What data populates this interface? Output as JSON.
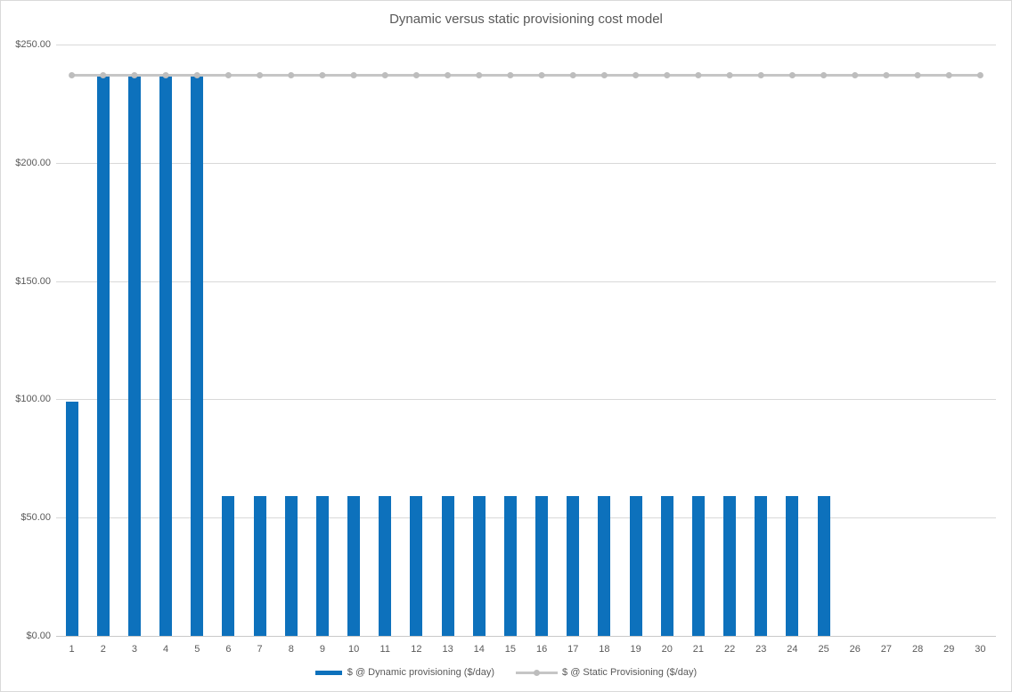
{
  "chart_data": {
    "type": "bar",
    "title": "Dynamic versus static provisioning cost model",
    "categories": [
      1,
      2,
      3,
      4,
      5,
      6,
      7,
      8,
      9,
      10,
      11,
      12,
      13,
      14,
      15,
      16,
      17,
      18,
      19,
      20,
      21,
      22,
      23,
      24,
      25,
      26,
      27,
      28,
      29,
      30
    ],
    "series": [
      {
        "name": "$ @ Dynamic provisioning ($/day)",
        "kind": "bar",
        "color": "#0D71BC",
        "values": [
          99,
          237,
          237,
          237,
          237,
          59,
          59,
          59,
          59,
          59,
          59,
          59,
          59,
          59,
          59,
          59,
          59,
          59,
          59,
          59,
          59,
          59,
          59,
          59,
          59,
          0,
          0,
          0,
          0,
          0
        ]
      },
      {
        "name": "$ @ Static Provisioning ($/day)",
        "kind": "line",
        "color": "#C6C6C6",
        "marker_color": "#BDBDBD",
        "values": [
          237,
          237,
          237,
          237,
          237,
          237,
          237,
          237,
          237,
          237,
          237,
          237,
          237,
          237,
          237,
          237,
          237,
          237,
          237,
          237,
          237,
          237,
          237,
          237,
          237,
          237,
          237,
          237,
          237,
          237
        ]
      }
    ],
    "xlabel": "",
    "ylabel": "",
    "ylim": [
      0,
      250
    ],
    "ytick_interval": 50,
    "ytick_labels": [
      "$0.00",
      "$50.00",
      "$100.00",
      "$150.00",
      "$200.00",
      "$250.00"
    ],
    "grid": "horizontal",
    "gridline_color": "#D9D9D9",
    "text_color": "#595959",
    "legend_position": "bottom"
  }
}
